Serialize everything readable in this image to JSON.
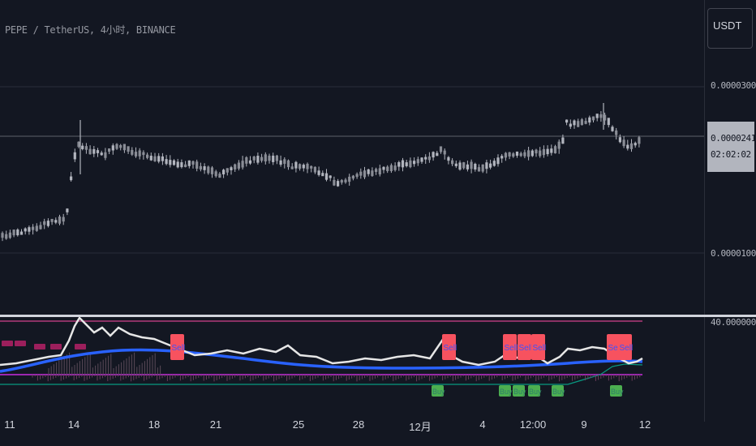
{
  "header": {
    "symbol_title": "PEPE / TetherUS, 4小时, BINANCE"
  },
  "currency_button": {
    "label": "USDT"
  },
  "price_axis": {
    "labels": [
      "0.00003000",
      "0.00001000"
    ],
    "last_price": "0.00002410",
    "countdown": "02:02:02"
  },
  "indicator_axis": {
    "label": "40.00000000"
  },
  "time_axis": {
    "labels": [
      "11",
      "14",
      "18",
      "21",
      "25",
      "28",
      "12月",
      "4",
      "12:00",
      "9",
      "12"
    ]
  },
  "colors": {
    "background": "#131722",
    "candle": "#b2b5be",
    "gridline": "#2a2e39",
    "indicator_white": "#e6e6e6",
    "indicator_blue": "#2962ff",
    "band": "#9c27b0",
    "green_line": "#089981",
    "sell_badge": "#f7525f",
    "buy_badge": "#4caf50"
  },
  "signals": {
    "sell_label": "Sell",
    "buy_label": "Buy"
  }
}
